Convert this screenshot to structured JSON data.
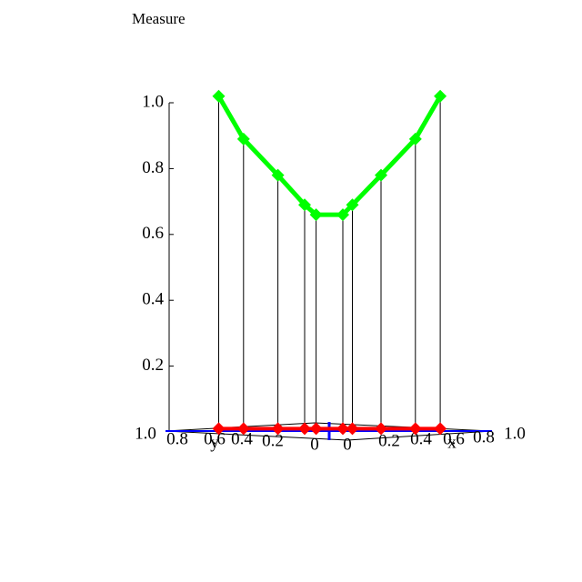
{
  "chart_data": {
    "type": "line",
    "title": "Measure",
    "x": [
      -0.55,
      -0.42,
      -0.24,
      -0.1,
      -0.04,
      0.1,
      0.15,
      0.3,
      0.48,
      0.61
    ],
    "xlim": [
      -1,
      1
    ],
    "horizontal_labels": [
      "1.0",
      "0.8",
      "0.6",
      "0.4",
      "0.2",
      "0",
      "0",
      "0.2",
      "0.4",
      "0.6",
      "0.8",
      "1.0"
    ],
    "y_axis_name": "y",
    "x_axis_name": "x",
    "series": [
      {
        "color": "#00ff00",
        "values": [
          1.02,
          0.89,
          0.78,
          0.69,
          0.66,
          0.66,
          0.69,
          0.78,
          0.89,
          1.02
        ]
      },
      {
        "color": "#ff0000",
        "values": [
          0.01,
          0.01,
          0.01,
          0.01,
          0.01,
          0.01,
          0.01,
          0.01,
          0.01,
          0.01
        ]
      }
    ],
    "ylim": [
      0,
      1
    ],
    "yticks": [
      0.2,
      0.4,
      0.6,
      0.8,
      {
        "value": 1,
        "label": "1.0"
      }
    ],
    "stems": true
  }
}
